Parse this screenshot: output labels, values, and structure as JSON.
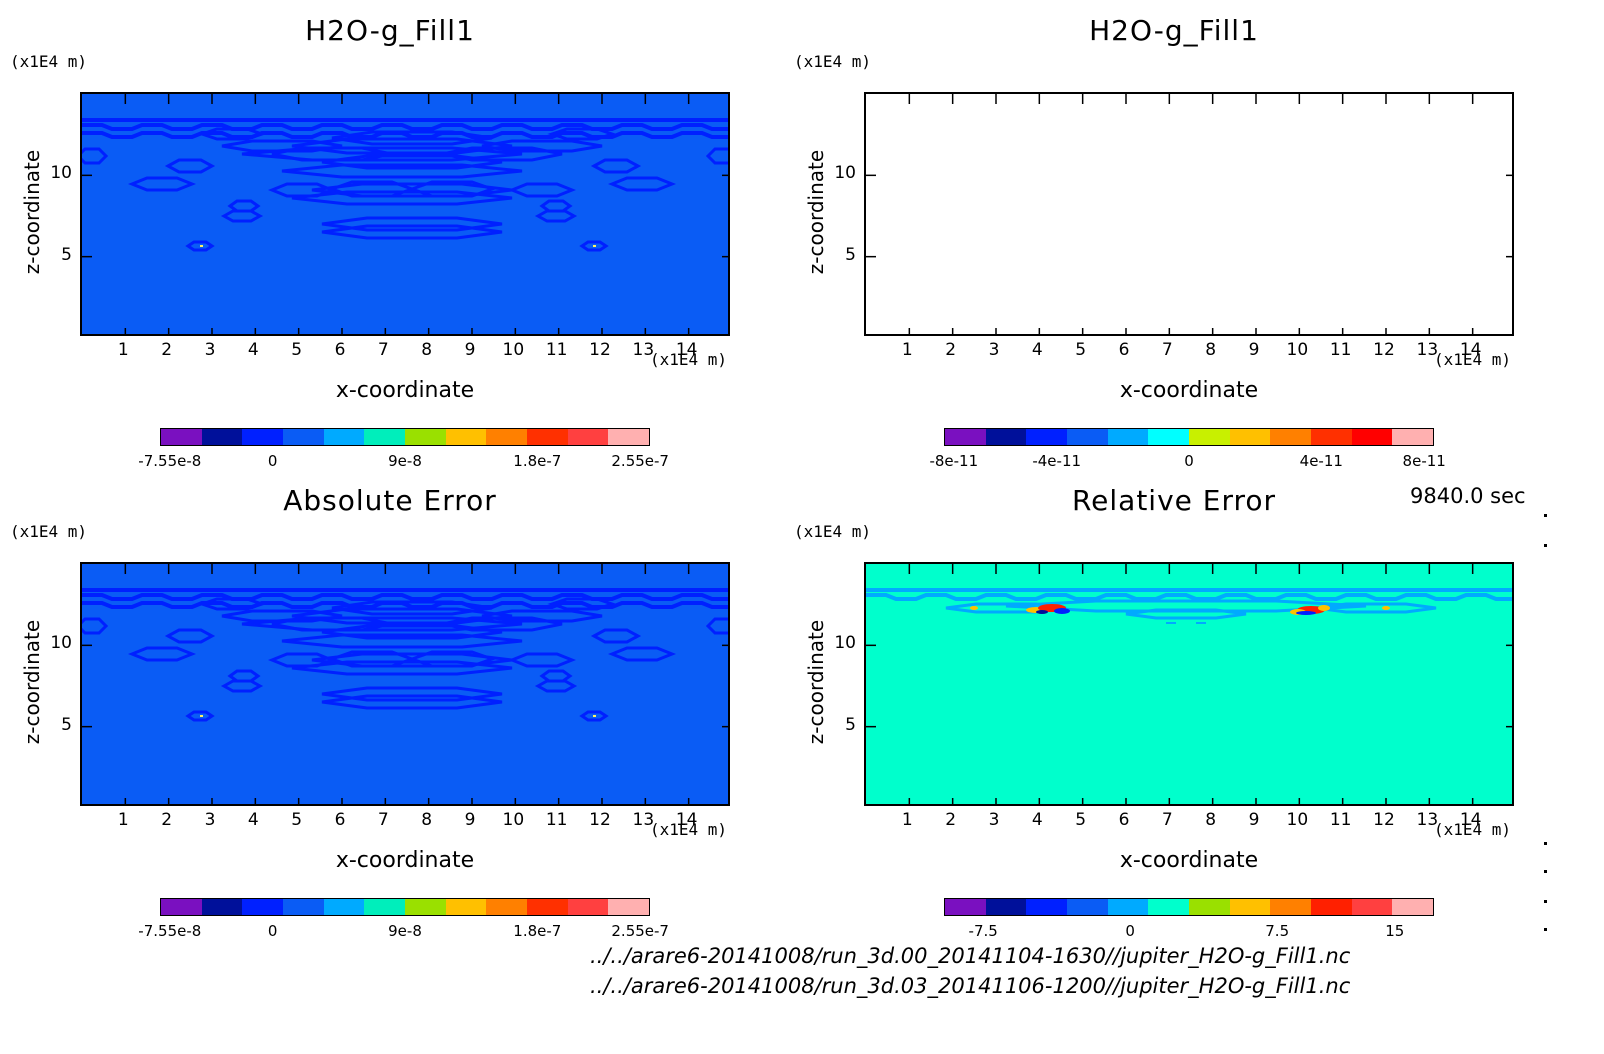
{
  "chart_data": [
    {
      "type": "heatmap",
      "title": "H2O-g_Fill1",
      "xlabel": "x-coordinate",
      "ylabel": "z-coordinate",
      "x_unit": "(x1E4 m)",
      "y_unit": "(x1E4 m)",
      "xlim": [
        0,
        15
      ],
      "ylim": [
        0,
        15
      ],
      "x_ticks": [
        "1",
        "2",
        "3",
        "4",
        "5",
        "6",
        "7",
        "8",
        "9",
        "10",
        "11",
        "12",
        "13",
        "14"
      ],
      "y_ticks": [
        "5",
        "10"
      ],
      "background": "#0a5cf5",
      "colorbar": {
        "colors": [
          "#7a10c0",
          "#00109a",
          "#0020ff",
          "#0a5cf5",
          "#00aaff",
          "#00eebb",
          "#9ae000",
          "#ffc000",
          "#ff8000",
          "#ff3000",
          "#ff4040",
          "#ffb0b0"
        ],
        "labels": [
          "-7.55e-8",
          "0",
          "9e-8",
          "1.8e-7",
          "2.55e-7"
        ]
      }
    },
    {
      "type": "heatmap",
      "title": "H2O-g_Fill1",
      "xlabel": "x-coordinate",
      "ylabel": "z-coordinate",
      "x_unit": "(x1E4 m)",
      "y_unit": "(x1E4 m)",
      "xlim": [
        0,
        15
      ],
      "ylim": [
        0,
        15
      ],
      "x_ticks": [
        "1",
        "2",
        "3",
        "4",
        "5",
        "6",
        "7",
        "8",
        "9",
        "10",
        "11",
        "12",
        "13",
        "14"
      ],
      "y_ticks": [
        "5",
        "10"
      ],
      "background": "#ffffff",
      "colorbar": {
        "colors": [
          "#7a10c0",
          "#00109a",
          "#0020ff",
          "#0a5cf5",
          "#00aaff",
          "#00ffff",
          "#c8f000",
          "#ffc000",
          "#ff8000",
          "#ff3000",
          "#ff0000",
          "#ffb0b0"
        ],
        "labels": [
          "-8e-11",
          "-4e-11",
          "0",
          "4e-11",
          "8e-11"
        ]
      }
    },
    {
      "type": "heatmap",
      "title": "Absolute Error",
      "xlabel": "x-coordinate",
      "ylabel": "z-coordinate",
      "x_unit": "(x1E4 m)",
      "y_unit": "(x1E4 m)",
      "xlim": [
        0,
        15
      ],
      "ylim": [
        0,
        15
      ],
      "x_ticks": [
        "1",
        "2",
        "3",
        "4",
        "5",
        "6",
        "7",
        "8",
        "9",
        "10",
        "11",
        "12",
        "13",
        "14"
      ],
      "y_ticks": [
        "5",
        "10"
      ],
      "background": "#0a5cf5",
      "colorbar": {
        "colors": [
          "#7a10c0",
          "#00109a",
          "#0020ff",
          "#0a5cf5",
          "#00aaff",
          "#00eebb",
          "#9ae000",
          "#ffc000",
          "#ff8000",
          "#ff3000",
          "#ff4040",
          "#ffb0b0"
        ],
        "labels": [
          "-7.55e-8",
          "0",
          "9e-8",
          "1.8e-7",
          "2.55e-7"
        ]
      }
    },
    {
      "type": "heatmap",
      "title": "Relative Error",
      "xlabel": "x-coordinate",
      "ylabel": "z-coordinate",
      "x_unit": "(x1E4 m)",
      "y_unit": "(x1E4 m)",
      "xlim": [
        0,
        15
      ],
      "ylim": [
        0,
        15
      ],
      "x_ticks": [
        "1",
        "2",
        "3",
        "4",
        "5",
        "6",
        "7",
        "8",
        "9",
        "10",
        "11",
        "12",
        "13",
        "14"
      ],
      "y_ticks": [
        "5",
        "10"
      ],
      "background": "#00ffcc",
      "colorbar": {
        "colors": [
          "#7a10c0",
          "#00109a",
          "#0020ff",
          "#0a5cf5",
          "#00aaff",
          "#00ffcc",
          "#9ae000",
          "#ffc000",
          "#ff8000",
          "#ff2000",
          "#ff4040",
          "#ffb0b0"
        ],
        "labels": [
          "-7.5",
          "0",
          "7.5",
          "15"
        ]
      }
    }
  ],
  "footer": {
    "time": "9840.0 sec",
    "file1": "../../arare6-20141008/run_3d.00_20141104-1630//jupiter_H2O-g_Fill1.nc",
    "file2": "../../arare6-20141008/run_3d.03_20141106-1200//jupiter_H2O-g_Fill1.nc"
  }
}
